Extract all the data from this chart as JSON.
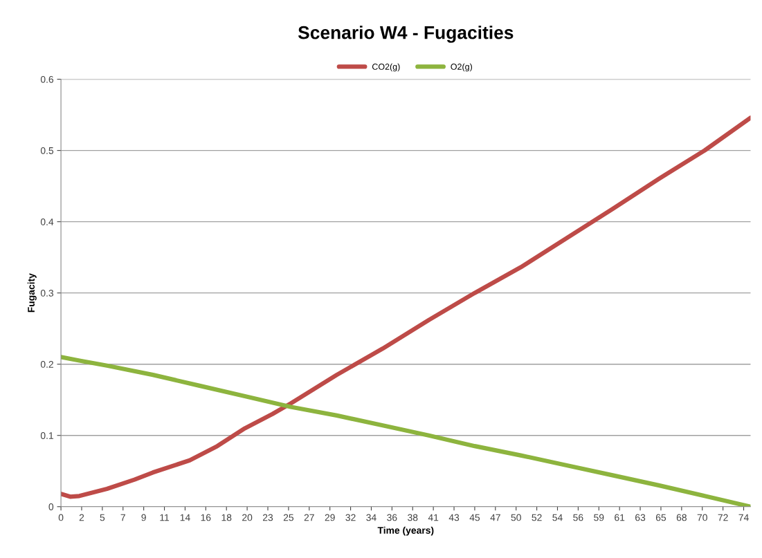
{
  "chart_data": {
    "type": "line",
    "title": "Scenario W4 - Fugacities",
    "xlabel": "Time (years)",
    "ylabel": "Fugacity",
    "series": [
      {
        "name": "CO2(g)",
        "color": "#be4b48",
        "x": [
          0,
          1,
          2,
          5,
          8,
          10,
          14,
          17,
          20,
          23,
          25,
          30,
          35,
          40,
          45,
          50,
          55,
          60,
          65,
          70,
          75
        ],
        "values": [
          0.018,
          0.014,
          0.015,
          0.025,
          0.038,
          0.048,
          0.065,
          0.085,
          0.11,
          0.13,
          0.145,
          0.185,
          0.222,
          0.262,
          0.3,
          0.336,
          0.377,
          0.418,
          0.46,
          0.5,
          0.546
        ]
      },
      {
        "name": "O2(g)",
        "color": "#8db43e",
        "x": [
          0,
          2,
          5,
          10,
          15,
          20,
          25,
          30,
          35,
          40,
          45,
          50,
          55,
          60,
          65,
          70,
          75
        ],
        "values": [
          0.21,
          0.205,
          0.198,
          0.185,
          0.17,
          0.155,
          0.14,
          0.128,
          0.114,
          0.1,
          0.085,
          0.072,
          0.058,
          0.044,
          0.03,
          0.015,
          0.0
        ]
      }
    ],
    "xlim": [
      0,
      75
    ],
    "ylim": [
      0,
      0.6
    ],
    "yticks": [
      0,
      0.1,
      0.2,
      0.3,
      0.4,
      0.5,
      0.6
    ],
    "xticks": [
      {
        "value": 0,
        "label": "0"
      },
      {
        "value": 2.25,
        "label": "2"
      },
      {
        "value": 4.5,
        "label": "5"
      },
      {
        "value": 6.75,
        "label": "7"
      },
      {
        "value": 9,
        "label": "9"
      },
      {
        "value": 11.25,
        "label": "11"
      },
      {
        "value": 13.5,
        "label": "14"
      },
      {
        "value": 15.75,
        "label": "16"
      },
      {
        "value": 18,
        "label": "18"
      },
      {
        "value": 20.25,
        "label": "20"
      },
      {
        "value": 22.5,
        "label": "23"
      },
      {
        "value": 24.75,
        "label": "25"
      },
      {
        "value": 27,
        "label": "27"
      },
      {
        "value": 29.25,
        "label": "29"
      },
      {
        "value": 31.5,
        "label": "32"
      },
      {
        "value": 33.75,
        "label": "34"
      },
      {
        "value": 36,
        "label": "36"
      },
      {
        "value": 38.25,
        "label": "38"
      },
      {
        "value": 40.5,
        "label": "41"
      },
      {
        "value": 42.75,
        "label": "43"
      },
      {
        "value": 45,
        "label": "45"
      },
      {
        "value": 47.25,
        "label": "47"
      },
      {
        "value": 49.5,
        "label": "50"
      },
      {
        "value": 51.75,
        "label": "52"
      },
      {
        "value": 54,
        "label": "54"
      },
      {
        "value": 56.25,
        "label": "56"
      },
      {
        "value": 58.5,
        "label": "59"
      },
      {
        "value": 60.75,
        "label": "61"
      },
      {
        "value": 63,
        "label": "63"
      },
      {
        "value": 65.25,
        "label": "65"
      },
      {
        "value": 67.5,
        "label": "68"
      },
      {
        "value": 69.75,
        "label": "70"
      },
      {
        "value": 72,
        "label": "72"
      },
      {
        "value": 74.25,
        "label": "74"
      }
    ],
    "grid": "y",
    "legend": "top",
    "marker": "none",
    "line_style": "solid"
  }
}
